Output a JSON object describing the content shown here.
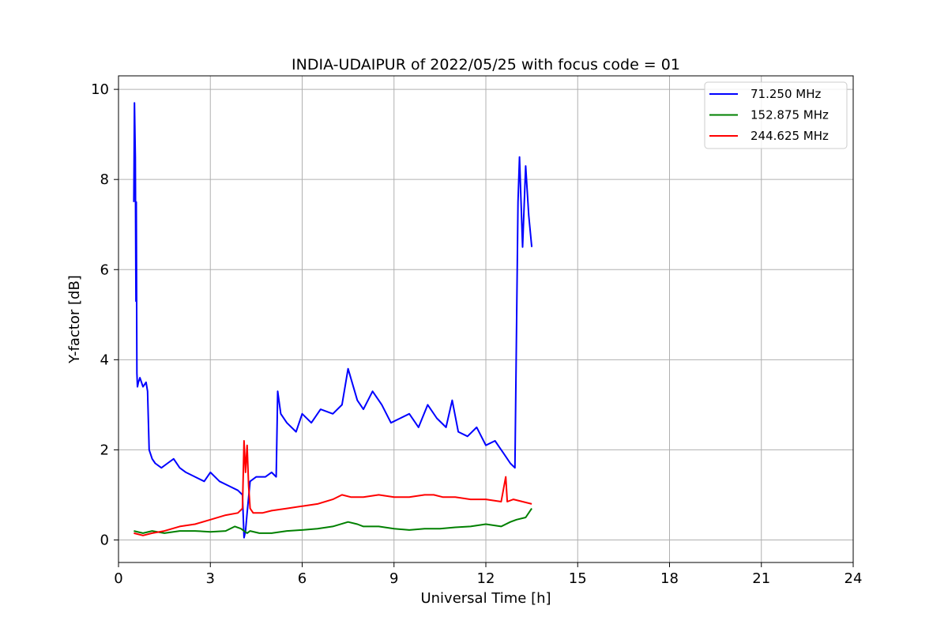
{
  "chart_data": {
    "type": "line",
    "title": "INDIA-UDAIPUR of 2022/05/25 with focus code = 01",
    "xlabel": "Universal Time [h]",
    "ylabel": "Y-factor [dB]",
    "xlim": [
      0,
      24
    ],
    "ylim": [
      -0.5,
      10.3
    ],
    "xticks": [
      0,
      3,
      6,
      9,
      12,
      15,
      18,
      21,
      24
    ],
    "xtick_labels": [
      "0",
      "3",
      "6",
      "9",
      "12",
      "15",
      "18",
      "21",
      "24"
    ],
    "yticks": [
      0,
      2,
      4,
      6,
      8,
      10
    ],
    "ytick_labels": [
      "0",
      "2",
      "4",
      "6",
      "8",
      "10"
    ],
    "grid": true,
    "legend_position": "top-right",
    "series": [
      {
        "name": " 71.250 MHz",
        "legend_label": "  71.250 MHz",
        "color": "#0000ff",
        "x": [
          0.5,
          0.52,
          0.55,
          0.57,
          0.58,
          0.6,
          0.62,
          0.65,
          0.7,
          0.8,
          0.9,
          0.95,
          1.0,
          1.05,
          1.1,
          1.2,
          1.4,
          1.6,
          1.8,
          2.0,
          2.2,
          2.5,
          2.8,
          3.0,
          3.3,
          3.6,
          3.9,
          4.05,
          4.1,
          4.15,
          4.2,
          4.3,
          4.5,
          4.8,
          5.0,
          5.15,
          5.2,
          5.3,
          5.5,
          5.8,
          6.0,
          6.3,
          6.6,
          7.0,
          7.3,
          7.5,
          7.8,
          8.0,
          8.3,
          8.6,
          8.9,
          9.2,
          9.5,
          9.8,
          10.1,
          10.4,
          10.7,
          10.9,
          11.1,
          11.4,
          11.7,
          12.0,
          12.3,
          12.6,
          12.8,
          12.95,
          13.05,
          13.1,
          13.2,
          13.3,
          13.4,
          13.5
        ],
        "y": [
          7.5,
          9.7,
          8.5,
          5.3,
          7.5,
          3.7,
          3.4,
          3.5,
          3.6,
          3.4,
          3.5,
          3.3,
          2.0,
          1.9,
          1.8,
          1.7,
          1.6,
          1.7,
          1.8,
          1.6,
          1.5,
          1.4,
          1.3,
          1.5,
          1.3,
          1.2,
          1.1,
          1.0,
          0.05,
          0.2,
          0.6,
          1.3,
          1.4,
          1.4,
          1.5,
          1.4,
          3.3,
          2.8,
          2.6,
          2.4,
          2.8,
          2.6,
          2.9,
          2.8,
          3.0,
          3.8,
          3.1,
          2.9,
          3.3,
          3.0,
          2.6,
          2.7,
          2.8,
          2.5,
          3.0,
          2.7,
          2.5,
          3.1,
          2.4,
          2.3,
          2.5,
          2.1,
          2.2,
          1.9,
          1.7,
          1.6,
          7.5,
          8.5,
          6.5,
          8.3,
          7.2,
          6.5
        ]
      },
      {
        "name": "152.875 MHz",
        "legend_label": "152.875 MHz",
        "color": "#008000",
        "x": [
          0.5,
          0.8,
          1.1,
          1.5,
          2.0,
          2.5,
          3.0,
          3.5,
          3.8,
          4.0,
          4.1,
          4.2,
          4.3,
          4.6,
          5.0,
          5.5,
          6.0,
          6.5,
          7.0,
          7.5,
          7.8,
          8.0,
          8.5,
          9.0,
          9.5,
          10.0,
          10.5,
          11.0,
          11.5,
          12.0,
          12.5,
          12.8,
          13.0,
          13.3,
          13.5
        ],
        "y": [
          0.2,
          0.15,
          0.2,
          0.15,
          0.2,
          0.2,
          0.18,
          0.2,
          0.3,
          0.25,
          0.2,
          0.15,
          0.2,
          0.15,
          0.15,
          0.2,
          0.22,
          0.25,
          0.3,
          0.4,
          0.35,
          0.3,
          0.3,
          0.25,
          0.22,
          0.25,
          0.25,
          0.28,
          0.3,
          0.35,
          0.3,
          0.4,
          0.45,
          0.5,
          0.7
        ]
      },
      {
        "name": "244.625 MHz",
        "legend_label": "244.625 MHz",
        "color": "#ff0000",
        "x": [
          0.5,
          0.8,
          1.1,
          1.5,
          2.0,
          2.5,
          3.0,
          3.5,
          3.9,
          4.05,
          4.1,
          4.15,
          4.2,
          4.25,
          4.3,
          4.4,
          4.7,
          5.0,
          5.5,
          6.0,
          6.5,
          7.0,
          7.3,
          7.6,
          8.0,
          8.5,
          9.0,
          9.5,
          10.0,
          10.3,
          10.6,
          11.0,
          11.5,
          12.0,
          12.5,
          12.65,
          12.7,
          12.9,
          13.2,
          13.5
        ],
        "y": [
          0.15,
          0.1,
          0.15,
          0.2,
          0.3,
          0.35,
          0.45,
          0.55,
          0.6,
          0.7,
          2.2,
          1.5,
          2.1,
          1.2,
          0.7,
          0.6,
          0.6,
          0.65,
          0.7,
          0.75,
          0.8,
          0.9,
          1.0,
          0.95,
          0.95,
          1.0,
          0.95,
          0.95,
          1.0,
          1.0,
          0.95,
          0.95,
          0.9,
          0.9,
          0.85,
          1.4,
          0.85,
          0.9,
          0.85,
          0.8
        ]
      }
    ]
  }
}
